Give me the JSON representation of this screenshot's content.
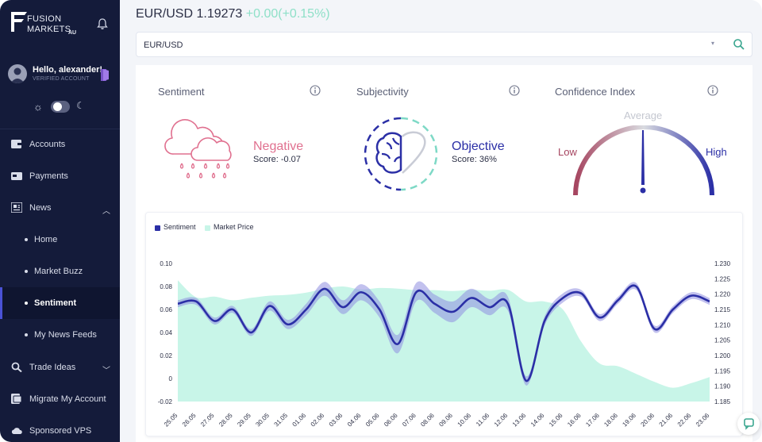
{
  "brand": {
    "line1": "FUSION",
    "line2": "MARKETS",
    "region": "AU"
  },
  "user": {
    "greeting": "Hello,  alexander!",
    "status": "VERIFIED ACCOUNT"
  },
  "nav": {
    "items": [
      {
        "label": "Accounts"
      },
      {
        "label": "Payments"
      },
      {
        "label": "News"
      }
    ],
    "news_sub": [
      {
        "label": "Home"
      },
      {
        "label": "Market Buzz"
      },
      {
        "label": "Sentiment"
      },
      {
        "label": "My News Feeds"
      }
    ],
    "trade_ideas": "Trade Ideas",
    "migrate": "Migrate My Account",
    "sponsored": "Sponsored VPS"
  },
  "header": {
    "pair": "EUR/USD",
    "price": "1.19273",
    "change": "+0.00(+0.15%)"
  },
  "search": {
    "value": "EUR/USD"
  },
  "cards": {
    "sentiment": {
      "title": "Sentiment",
      "label": "Negative",
      "score": "Score: -0.07",
      "color": "#e0708f"
    },
    "subjectivity": {
      "title": "Subjectivity",
      "label": "Objective",
      "score": "Score: 36%",
      "color": "#2b2fa6"
    },
    "confidence": {
      "title": "Confidence Index",
      "average": "Average",
      "low": "Low",
      "high": "High"
    }
  },
  "colors": {
    "sidebar": "#141b3a",
    "accent": "#2b2fa6",
    "negative": "#e0708f",
    "market_fill": "#c8f5e8",
    "low": "#a64560"
  },
  "chart_data": {
    "type": "line",
    "legend": [
      "Sentiment",
      "Market Price"
    ],
    "x": [
      "25.05",
      "26.05",
      "27.05",
      "28.05",
      "29.05",
      "30.05",
      "31.05",
      "01.06",
      "02.06",
      "03.06",
      "04.06",
      "05.06",
      "06.06",
      "07.06",
      "08.06",
      "09.06",
      "10.06",
      "11.06",
      "12.06",
      "13.06",
      "14.06",
      "15.06",
      "16.06",
      "17.06",
      "18.06",
      "19.06",
      "20.06",
      "21.06",
      "22.06",
      "23.06"
    ],
    "series": [
      {
        "name": "Sentiment",
        "axis": "left",
        "values": [
          0.065,
          0.067,
          0.05,
          0.06,
          0.04,
          0.063,
          0.047,
          0.06,
          0.078,
          0.062,
          0.075,
          0.06,
          0.03,
          0.075,
          0.065,
          0.058,
          0.07,
          0.062,
          0.065,
          -0.002,
          0.05,
          0.07,
          0.074,
          0.053,
          0.068,
          0.08,
          0.043,
          0.06,
          0.072,
          0.067
        ],
        "band": [
          0.003,
          0.003,
          0.003,
          0.003,
          0.003,
          0.004,
          0.004,
          0.005,
          0.006,
          0.006,
          0.007,
          0.007,
          0.008,
          0.008,
          0.008,
          0.009,
          0.008,
          0.007,
          0.006,
          0.004,
          0.004,
          0.004,
          0.003,
          0.003,
          0.003,
          0.003,
          0.003,
          0.003,
          0.003,
          0.003
        ]
      },
      {
        "name": "Market Price",
        "axis": "right",
        "values": [
          1.2245,
          1.219,
          1.2192,
          1.218,
          1.2188,
          1.2195,
          1.2198,
          1.2205,
          1.2218,
          1.2225,
          1.2215,
          1.222,
          1.2218,
          1.2213,
          1.2213,
          1.221,
          1.2214,
          1.2211,
          1.2214,
          1.2176,
          1.2176,
          1.215,
          1.2045,
          1.1974,
          1.1965,
          1.194,
          1.1914,
          1.1895,
          1.191,
          1.193
        ]
      }
    ],
    "y_left": {
      "ticks": [
        "0.10",
        "0.08",
        "0.06",
        "0.04",
        "0.02",
        "0",
        "-0.02"
      ],
      "range": [
        -0.02,
        0.1
      ]
    },
    "y_right": {
      "ticks": [
        "1.230",
        "1.225",
        "1.220",
        "1.215",
        "1.210",
        "1.205",
        "1.200",
        "1.195",
        "1.190",
        "1.185"
      ],
      "range": [
        1.185,
        1.23
      ]
    },
    "legend_position": "top-left",
    "grid": false
  }
}
